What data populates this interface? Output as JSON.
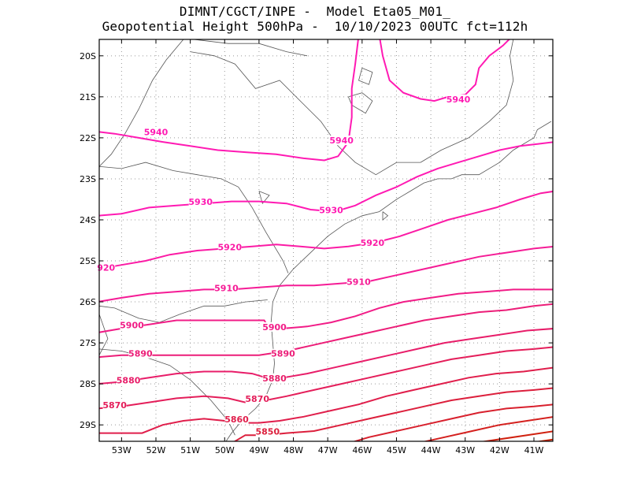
{
  "title_line1": "DIMNT/CGCT/INPE -  Model Eta05_M01_",
  "title_line2": "Geopotential Height 500hPa -  10/10/2023 00UTC fct=112h",
  "map": {
    "lon_range": [
      -53.65,
      -40.45
    ],
    "lat_range": [
      -29.4,
      -19.6
    ],
    "lon_ticks": [
      -53,
      -52,
      -51,
      -50,
      -49,
      -48,
      -47,
      -46,
      -45,
      -44,
      -43,
      -42,
      -41
    ],
    "lon_tick_labels": [
      "53W",
      "52W",
      "51W",
      "50W",
      "49W",
      "48W",
      "47W",
      "46W",
      "45W",
      "44W",
      "43W",
      "42W",
      "41W"
    ],
    "lat_ticks": [
      -20,
      -21,
      -22,
      -23,
      -24,
      -25,
      -26,
      -27,
      -28,
      -29
    ],
    "lat_tick_labels": [
      "20S",
      "21S",
      "22S",
      "23S",
      "24S",
      "25S",
      "26S",
      "27S",
      "28S",
      "29S"
    ],
    "grid": true,
    "contour_interval_m": 10
  },
  "contours": [
    {
      "level": 5940,
      "color": "#ff1ab3",
      "labels": [
        {
          "text": "5940",
          "lon": -52.0,
          "lat": -21.9
        },
        {
          "text": "5940",
          "lon": -46.6,
          "lat": -22.1
        }
      ]
    },
    {
      "level": 5940,
      "color": "#ff1ab3",
      "labels": [
        {
          "text": "5940",
          "lon": -43.2,
          "lat": -21.1
        }
      ]
    },
    {
      "level": 5930,
      "color": "#ff1ab3",
      "labels": [
        {
          "text": "5930",
          "lon": -50.7,
          "lat": -23.6
        },
        {
          "text": "5930",
          "lon": -46.9,
          "lat": -23.8
        }
      ]
    },
    {
      "level": 5920,
      "color": "#fb1ba5",
      "labels": [
        {
          "text": "920",
          "lon": -53.45,
          "lat": -25.2
        },
        {
          "text": "5920",
          "lon": -49.85,
          "lat": -24.7
        },
        {
          "text": "5920",
          "lon": -45.7,
          "lat": -24.6
        }
      ]
    },
    {
      "level": 5910,
      "color": "#f51c96",
      "labels": [
        {
          "text": "5910",
          "lon": -49.95,
          "lat": -25.7
        },
        {
          "text": "5910",
          "lon": -46.1,
          "lat": -25.55
        }
      ]
    },
    {
      "level": 5900,
      "color": "#f11c87",
      "labels": [
        {
          "text": "5900",
          "lon": -52.7,
          "lat": -26.6
        },
        {
          "text": "5900",
          "lon": -48.55,
          "lat": -26.65
        }
      ]
    },
    {
      "level": 5890,
      "color": "#ec1d78",
      "labels": [
        {
          "text": "5890",
          "lon": -52.45,
          "lat": -27.3
        },
        {
          "text": "5890",
          "lon": -48.3,
          "lat": -27.3
        }
      ]
    },
    {
      "level": 5880,
      "color": "#e81d69",
      "labels": [
        {
          "text": "5880",
          "lon": -52.8,
          "lat": -27.95
        },
        {
          "text": "5880",
          "lon": -48.55,
          "lat": -27.9
        }
      ]
    },
    {
      "level": 5870,
      "color": "#e41e5a",
      "labels": [
        {
          "text": "5870",
          "lon": -53.2,
          "lat": -28.55
        },
        {
          "text": "5870",
          "lon": -49.05,
          "lat": -28.4
        }
      ]
    },
    {
      "level": 5860,
      "color": "#e01e4b",
      "labels": [
        {
          "text": "5860",
          "lon": -49.65,
          "lat": -28.9
        }
      ]
    },
    {
      "level": 5850,
      "color": "#dc1f3c",
      "labels": [
        {
          "text": "5850",
          "lon": -48.75,
          "lat": -29.2
        }
      ]
    },
    {
      "level": 5840,
      "color": "#d8202d",
      "labels": []
    },
    {
      "level": 5830,
      "color": "#d4201e",
      "labels": []
    },
    {
      "level": 5820,
      "color": "#d0210f",
      "labels": []
    },
    {
      "level": 5810,
      "color": "#cc2200",
      "labels": []
    }
  ]
}
